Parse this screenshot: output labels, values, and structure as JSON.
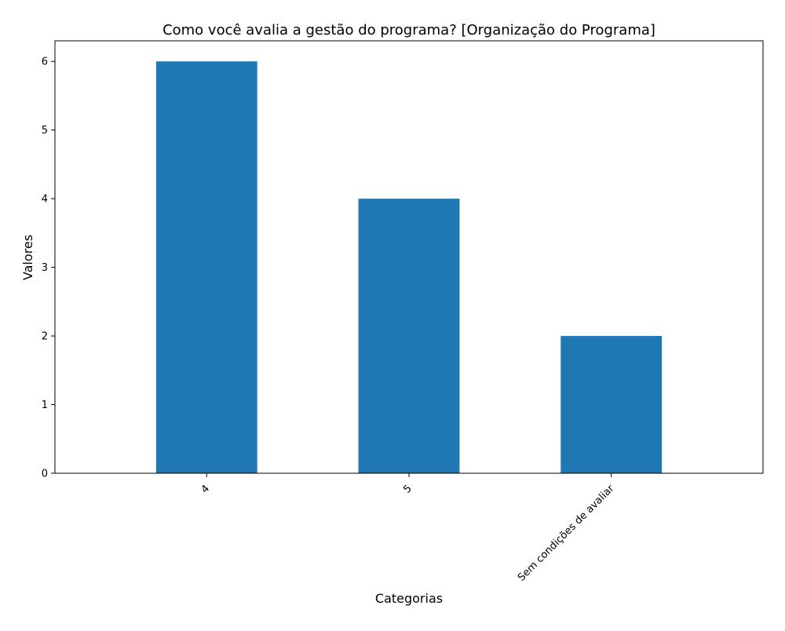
{
  "chart_data": {
    "type": "bar",
    "title": "Como você avalia a gestão do programa? [Organização do Programa]",
    "xlabel": "Categorias",
    "ylabel": "Valores",
    "categories": [
      "4",
      "5",
      "Sem condições de avaliar"
    ],
    "values": [
      6,
      4,
      2
    ],
    "ylim": [
      0,
      6.3
    ],
    "yticks": [
      0,
      1,
      2,
      3,
      4,
      5,
      6
    ],
    "xtick_rotation_deg": 45,
    "grid": false,
    "legend": "none",
    "bar_color": "#1f77b4"
  }
}
